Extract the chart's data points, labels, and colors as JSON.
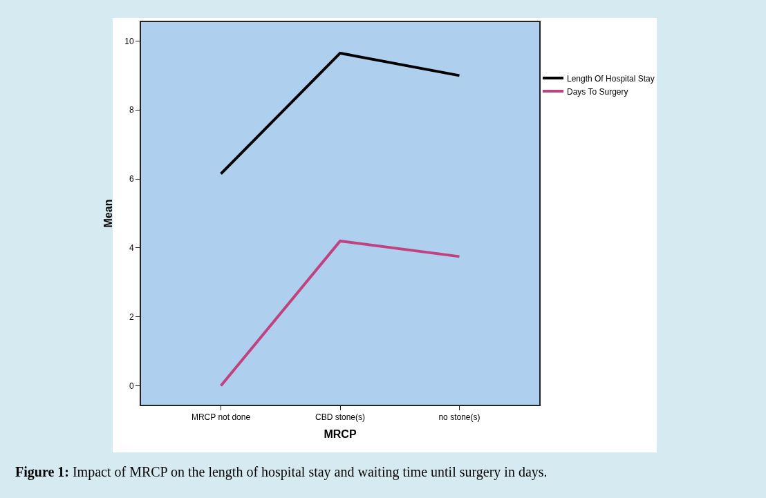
{
  "chart_data": {
    "type": "line",
    "xlabel": "MRCP",
    "ylabel": "Mean",
    "categories": [
      "MRCP not done",
      "CBD stone(s)",
      "no stone(s)"
    ],
    "series": [
      {
        "name": "Length Of Hospital Stay",
        "color": "#000000",
        "values": [
          6.15,
          9.65,
          9.0
        ]
      },
      {
        "name": "Days To Surgery",
        "color": "#c0427f",
        "values": [
          0,
          4.2,
          3.75
        ]
      }
    ],
    "ylim": [
      -0.55,
      10.55
    ],
    "yticks": [
      0,
      2,
      4,
      6,
      8,
      10
    ],
    "legend": "top right",
    "marker": "none",
    "line_style": "solid",
    "annotations": [
      "Figure 1: Impact of MRCP on the length of hospital stay and waiting time until surgery in days."
    ]
  }
}
